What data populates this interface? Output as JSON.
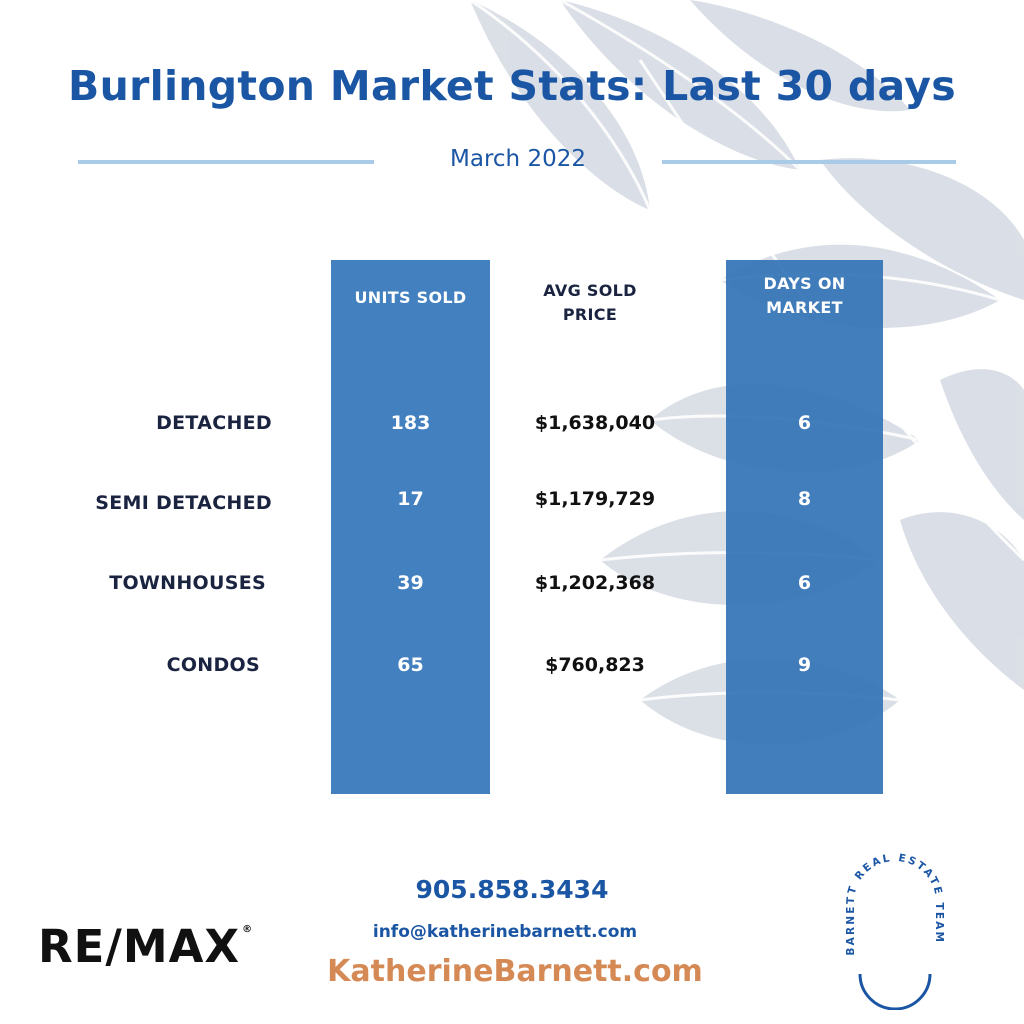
{
  "header": {
    "title": "Burlington Market Stats: Last 30 days",
    "subtitle": "March 2022"
  },
  "table": {
    "columns": [
      "UNITS SOLD",
      "AVG SOLD PRICE",
      "DAYS ON MARKET"
    ],
    "column_lines": {
      "units": [
        "UNITS SOLD"
      ],
      "price": [
        "AVG SOLD",
        "PRICE"
      ],
      "dom": [
        "DAYS ON",
        "MARKET"
      ]
    },
    "rows": [
      {
        "label": "DETACHED",
        "units_sold": "183",
        "avg_sold_price": "$1,638,040",
        "days_on_market": "6"
      },
      {
        "label": "SEMI DETACHED",
        "units_sold": "17",
        "avg_sold_price": "$1,179,729",
        "days_on_market": "8"
      },
      {
        "label": "TOWNHOUSES",
        "units_sold": "39",
        "avg_sold_price": "$1,202,368",
        "days_on_market": "6"
      },
      {
        "label": "CONDOS",
        "units_sold": "65",
        "avg_sold_price": "$760,823",
        "days_on_market": "9"
      }
    ]
  },
  "footer": {
    "brokerage_logo_text": "RE/MAX",
    "brokerage_logo_mark": "®",
    "phone": "905.858.3434",
    "email": "info@katherinebarnett.com",
    "website": "KatherineBarnett.com",
    "team_logo_text": "BARNETT REAL ESTATE TEAM"
  },
  "colors": {
    "title_blue": "#1b56a4",
    "column_blue": "#3a7bbd",
    "rule_light_blue": "#a9cbe7",
    "label_navy": "#1a2340",
    "website_orange": "#d58a55",
    "leaf_gray": "#d9dde5"
  },
  "icons": {
    "background": "leaf-branch-illustration",
    "team_logo": "arch-logo"
  }
}
